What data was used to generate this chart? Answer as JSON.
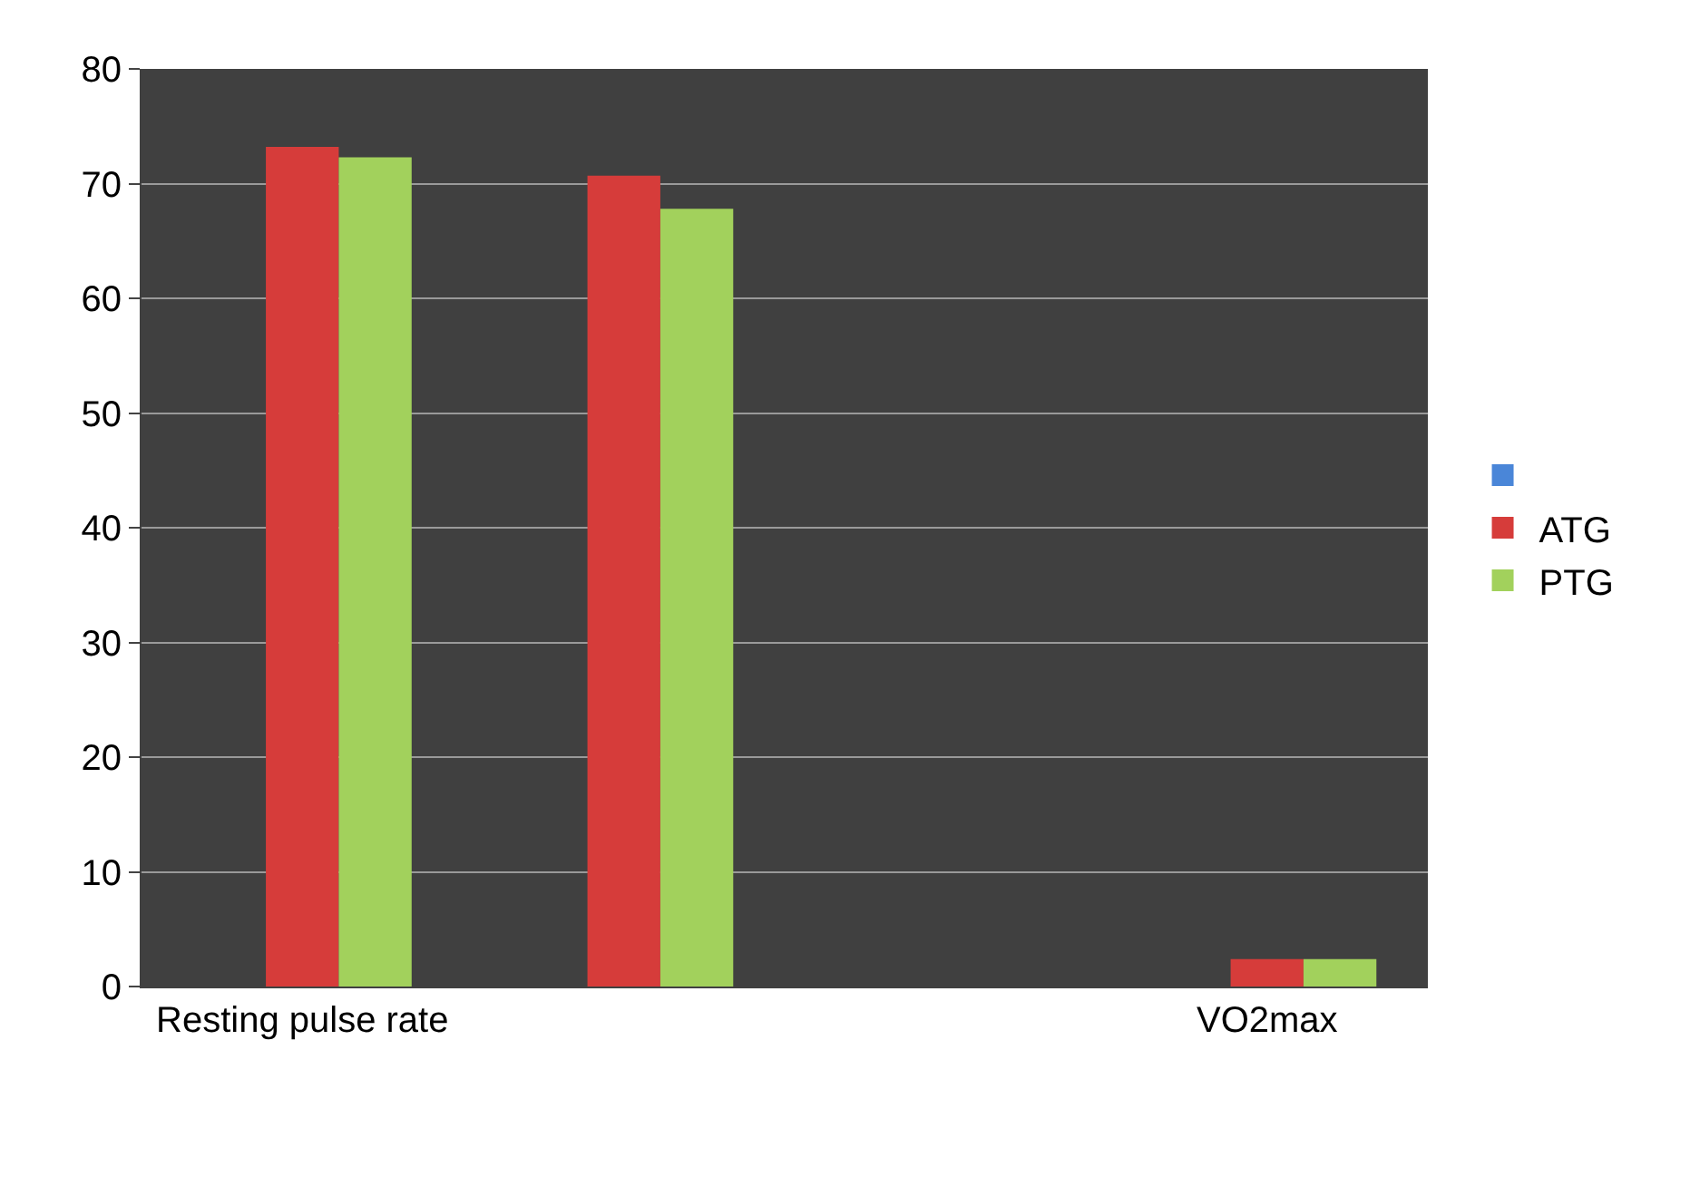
{
  "chart_data": {
    "type": "bar",
    "categories": [
      "Resting pulse rate",
      null,
      null,
      "VO2max"
    ],
    "series": [
      {
        "color": "#4a86d8",
        "values": [
          null,
          null,
          null,
          null
        ]
      },
      {
        "name": "ATG",
        "color": "#d63c3a",
        "values": [
          73.2,
          70.7,
          null,
          2.4
        ]
      },
      {
        "name": "PTG",
        "color": "#a2d15c",
        "values": [
          72.3,
          67.8,
          null,
          2.4
        ]
      }
    ],
    "ylim": [
      0,
      80
    ],
    "yticks": [
      0,
      10,
      20,
      30,
      40,
      50,
      60,
      70,
      80
    ],
    "grid": "y",
    "legend": "right"
  }
}
